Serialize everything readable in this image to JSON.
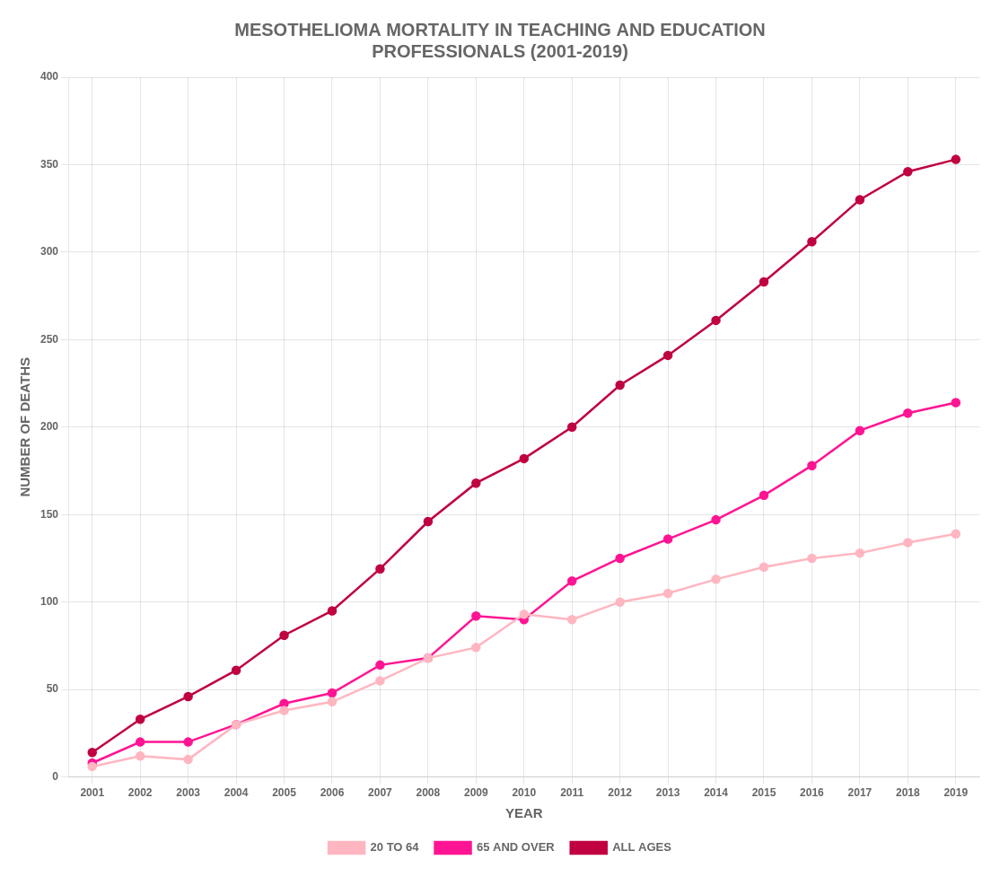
{
  "chart_data": {
    "type": "line",
    "title": "MESOTHELIOMA MORTALITY IN TEACHING AND EDUCATION\nPROFESSIONALS (2001-2019)",
    "x_label": "YEAR",
    "y_label": "NUMBER OF DEATHS",
    "x": [
      2001,
      2002,
      2003,
      2004,
      2005,
      2006,
      2007,
      2008,
      2009,
      2010,
      2011,
      2012,
      2013,
      2014,
      2015,
      2016,
      2017,
      2018,
      2019
    ],
    "series": [
      {
        "name": "20 TO 64",
        "color": "#FFB6C1",
        "values": [
          6,
          12,
          10,
          30,
          38,
          43,
          55,
          68,
          74,
          93,
          90,
          100,
          105,
          113,
          120,
          125,
          128,
          134,
          139
        ]
      },
      {
        "name": "65 AND OVER",
        "color": "#FF1493",
        "values": [
          8,
          20,
          20,
          30,
          42,
          48,
          64,
          68,
          92,
          90,
          112,
          125,
          136,
          147,
          161,
          178,
          198,
          208,
          214
        ]
      },
      {
        "name": "ALL AGES",
        "color": "#C00040",
        "values": [
          14,
          33,
          46,
          61,
          81,
          95,
          119,
          146,
          168,
          182,
          200,
          224,
          241,
          261,
          283,
          306,
          330,
          346,
          353
        ]
      }
    ],
    "xlim": [
      2000.5,
      2019.5
    ],
    "xticks": [
      2001,
      2002,
      2003,
      2004,
      2005,
      2006,
      2007,
      2008,
      2009,
      2010,
      2011,
      2012,
      2013,
      2014,
      2015,
      2016,
      2017,
      2018,
      2019
    ],
    "ylim": [
      0,
      400
    ],
    "yticks": [
      0,
      50,
      100,
      150,
      200,
      250,
      300,
      350,
      400
    ],
    "grid": true,
    "legend": "bottom",
    "marker": "circle"
  }
}
